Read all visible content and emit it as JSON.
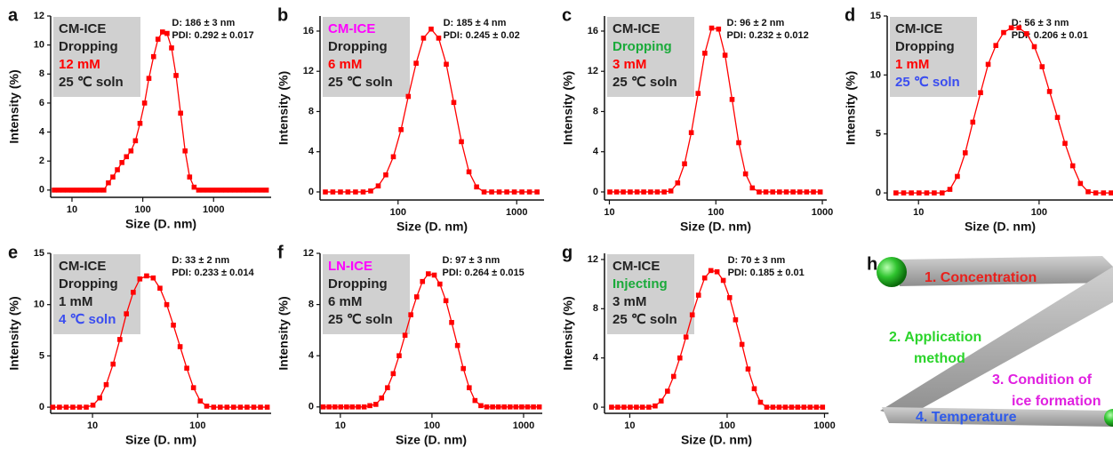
{
  "chart_data": [
    {
      "type": "line",
      "panel": "a",
      "x_scale": "log",
      "marker": "square",
      "annotation": [
        {
          "text": "CM-ICE",
          "color": "#222222"
        },
        {
          "text": "Dropping",
          "color": "#222222"
        },
        {
          "text": "12 mM",
          "color": "#ff0000"
        },
        {
          "text": "25 ℃ soln",
          "color": "#222222"
        }
      ],
      "stats": [
        "D: 186 ± 3 nm",
        "PDI: 0.292 ± 0.017"
      ],
      "x_label": "Size (D. nm)",
      "y_label": "Intensity (%)",
      "x": [
        5.62,
        6.5,
        7.53,
        8.72,
        10.1,
        11.7,
        13.5,
        15.7,
        18.2,
        21,
        24.4,
        28.2,
        32.7,
        37.8,
        43.8,
        50.8,
        58.8,
        68.1,
        78.8,
        91.3,
        106,
        122,
        142,
        164,
        190,
        220,
        255,
        295,
        342,
        396,
        459,
        531,
        615,
        712,
        825,
        955,
        1106,
        1281,
        1484,
        1718,
        1990,
        2305,
        2669,
        3091,
        3580,
        4145,
        4801,
        5560
      ],
      "series": [
        {
          "color": "#ff0000",
          "values": [
            0,
            0,
            0,
            0,
            0,
            0,
            0,
            0,
            0,
            0,
            0,
            0,
            0.5,
            0.9,
            1.4,
            1.9,
            2.3,
            2.7,
            3.4,
            4.6,
            6.0,
            7.7,
            9.2,
            10.4,
            10.9,
            10.8,
            9.8,
            7.9,
            5.3,
            2.7,
            0.9,
            0.2,
            0,
            0,
            0,
            0,
            0,
            0,
            0,
            0,
            0,
            0,
            0,
            0,
            0,
            0,
            0,
            0
          ]
        }
      ],
      "xlim": [
        5,
        6500
      ],
      "ylim": [
        -0.5,
        12
      ],
      "xticks": [
        10,
        100,
        1000
      ],
      "yticks": [
        0,
        2,
        4,
        6,
        8,
        10,
        12
      ]
    },
    {
      "type": "line",
      "panel": "b",
      "x_scale": "log",
      "marker": "square",
      "annotation": [
        {
          "text": "CM-ICE",
          "color": "#ff00ff"
        },
        {
          "text": "Dropping",
          "color": "#222222"
        },
        {
          "text": "6 mM",
          "color": "#ff0000"
        },
        {
          "text": "25 ℃ soln",
          "color": "#222222"
        }
      ],
      "stats": [
        "D: 185 ± 4 nm",
        "PDI: 0.245 ± 0.02"
      ],
      "x_label": "Size (D. nm)",
      "y_label": "Intensity (%)",
      "x": [
        24.4,
        28.2,
        32.7,
        37.8,
        43.8,
        50.8,
        58.8,
        68.1,
        78.8,
        91.3,
        106,
        122,
        142,
        164,
        190,
        220,
        255,
        295,
        342,
        396,
        459,
        531,
        615,
        712,
        825,
        955,
        1106,
        1281,
        1484
      ],
      "series": [
        {
          "color": "#ff0000",
          "values": [
            0,
            0,
            0,
            0,
            0,
            0,
            0.1,
            0.6,
            1.7,
            3.5,
            6.2,
            9.5,
            12.8,
            15.3,
            16.2,
            15.3,
            12.7,
            8.9,
            5.0,
            2.0,
            0.5,
            0,
            0,
            0,
            0,
            0,
            0,
            0,
            0
          ]
        }
      ],
      "xlim": [
        22,
        1700
      ],
      "ylim": [
        -0.8,
        17.5
      ],
      "xticks": [
        100,
        1000
      ],
      "yticks": [
        0,
        4,
        8,
        12,
        16
      ]
    },
    {
      "type": "line",
      "panel": "c",
      "x_scale": "log",
      "marker": "square",
      "annotation": [
        {
          "text": "CM-ICE",
          "color": "#222222"
        },
        {
          "text": "Dropping",
          "color": "#1aaa3a"
        },
        {
          "text": "3 mM",
          "color": "#ff0000"
        },
        {
          "text": "25 ℃ soln",
          "color": "#222222"
        }
      ],
      "stats": [
        "D: 96 ± 2 nm",
        "PDI: 0.232 ± 0.012"
      ],
      "x_label": "Size (D. nm)",
      "y_label": "Intensity (%)",
      "x": [
        10.1,
        11.7,
        13.5,
        15.7,
        18.2,
        21,
        24.4,
        28.2,
        32.7,
        37.8,
        43.8,
        50.8,
        58.8,
        68.1,
        78.8,
        91.3,
        106,
        122,
        142,
        164,
        190,
        220,
        255,
        295,
        342,
        396,
        459,
        531,
        615,
        712,
        825,
        955
      ],
      "series": [
        {
          "color": "#ff0000",
          "values": [
            0,
            0,
            0,
            0,
            0,
            0,
            0,
            0,
            0,
            0.1,
            0.9,
            2.8,
            5.9,
            9.8,
            13.8,
            16.3,
            16.2,
            13.6,
            9.2,
            4.9,
            1.8,
            0.4,
            0,
            0,
            0,
            0,
            0,
            0,
            0,
            0,
            0,
            0
          ]
        }
      ],
      "xlim": [
        9,
        1100
      ],
      "ylim": [
        -0.8,
        17.5
      ],
      "xticks": [
        10,
        100,
        1000
      ],
      "yticks": [
        0,
        4,
        8,
        12,
        16
      ]
    },
    {
      "type": "line",
      "panel": "d",
      "x_scale": "log",
      "marker": "square",
      "annotation": [
        {
          "text": "CM-ICE",
          "color": "#222222"
        },
        {
          "text": "Dropping",
          "color": "#222222"
        },
        {
          "text": "1 mM",
          "color": "#ff0000"
        },
        {
          "text": "25 ℃ soln",
          "color": "#3a4df0"
        }
      ],
      "stats": [
        "D: 56 ± 3 nm",
        "PDI: 0.206 ± 0.01"
      ],
      "x_label": "Size (D. nm)",
      "y_label": "Intensity (%)",
      "x": [
        6.5,
        7.53,
        8.72,
        10.1,
        11.7,
        13.5,
        15.7,
        18.2,
        21,
        24.4,
        28.2,
        32.7,
        37.8,
        43.8,
        50.8,
        58.8,
        68.1,
        78.8,
        91.3,
        106,
        122,
        142,
        164,
        190,
        220,
        255,
        295,
        342,
        396
      ],
      "series": [
        {
          "color": "#ff0000",
          "values": [
            0,
            0,
            0,
            0,
            0,
            0,
            0,
            0.3,
            1.4,
            3.4,
            6.0,
            8.5,
            10.9,
            12.5,
            13.6,
            14.0,
            14.0,
            13.5,
            12.4,
            10.7,
            8.6,
            6.4,
            4.2,
            2.3,
            0.8,
            0.1,
            0,
            0,
            0
          ]
        }
      ],
      "xlim": [
        5.5,
        410
      ],
      "ylim": [
        -0.6,
        15
      ],
      "xticks": [
        10,
        100
      ],
      "yticks": [
        0,
        5,
        10,
        15
      ]
    },
    {
      "type": "line",
      "panel": "e",
      "x_scale": "log",
      "marker": "square",
      "annotation": [
        {
          "text": "CM-ICE",
          "color": "#222222"
        },
        {
          "text": "Dropping",
          "color": "#222222"
        },
        {
          "text": "1 mM",
          "color": "#222222"
        },
        {
          "text": "4 ℃ soln",
          "color": "#3a4df0"
        }
      ],
      "stats": [
        "D: 33 ± 2 nm",
        "PDI: 0.233 ± 0.014"
      ],
      "x_label": "Size (D. nm)",
      "y_label": "Intensity (%)",
      "x": [
        4.19,
        4.85,
        5.62,
        6.5,
        7.53,
        8.72,
        10.1,
        11.7,
        13.5,
        15.7,
        18.2,
        21,
        24.4,
        28.2,
        32.7,
        37.8,
        43.8,
        50.8,
        58.8,
        68.1,
        78.8,
        91.3,
        106,
        122,
        142,
        164,
        190,
        220,
        255,
        295,
        342,
        396,
        459
      ],
      "series": [
        {
          "color": "#ff0000",
          "values": [
            0,
            0,
            0,
            0,
            0,
            0,
            0.2,
            0.9,
            2.2,
            4.2,
            6.6,
            9.1,
            11.2,
            12.5,
            12.8,
            12.6,
            11.6,
            10.0,
            8.0,
            5.9,
            3.8,
            1.9,
            0.6,
            0.1,
            0,
            0,
            0,
            0,
            0,
            0,
            0,
            0,
            0
          ]
        }
      ],
      "xlim": [
        4,
        500
      ],
      "ylim": [
        -0.6,
        15
      ],
      "xticks": [
        10,
        100
      ],
      "yticks": [
        0,
        5,
        10,
        15
      ]
    },
    {
      "type": "line",
      "panel": "f",
      "x_scale": "log",
      "marker": "square",
      "annotation": [
        {
          "text": "LN-ICE",
          "color": "#ff00ff"
        },
        {
          "text": "Dropping",
          "color": "#222222"
        },
        {
          "text": "6 mM",
          "color": "#222222"
        },
        {
          "text": "25 ℃ soln",
          "color": "#222222"
        }
      ],
      "stats": [
        "D: 97 ± 3 nm",
        "PDI: 0.264 ± 0.015"
      ],
      "x_label": "Size (D. nm)",
      "y_label": "Intensity (%)",
      "x": [
        6.5,
        7.53,
        8.72,
        10.1,
        11.7,
        13.5,
        15.7,
        18.2,
        21,
        24.4,
        28.2,
        32.7,
        37.8,
        43.8,
        50.8,
        58.8,
        68.1,
        78.8,
        91.3,
        106,
        122,
        142,
        164,
        190,
        220,
        255,
        295,
        342,
        396,
        459,
        531,
        615,
        712,
        825,
        955,
        1106,
        1281,
        1484
      ],
      "series": [
        {
          "color": "#ff0000",
          "values": [
            0,
            0,
            0,
            0,
            0,
            0,
            0,
            0,
            0.1,
            0.2,
            0.7,
            1.5,
            2.6,
            4.0,
            5.6,
            7.2,
            8.6,
            9.8,
            10.4,
            10.3,
            9.6,
            8.3,
            6.6,
            4.8,
            3.0,
            1.5,
            0.5,
            0.1,
            0,
            0,
            0,
            0,
            0,
            0,
            0,
            0,
            0,
            0
          ]
        }
      ],
      "xlim": [
        6,
        1600
      ],
      "ylim": [
        -0.5,
        12
      ],
      "xticks": [
        10,
        100,
        1000
      ],
      "yticks": [
        0,
        4,
        8,
        12
      ]
    },
    {
      "type": "line",
      "panel": "g",
      "x_scale": "log",
      "marker": "square",
      "annotation": [
        {
          "text": "CM-ICE",
          "color": "#222222"
        },
        {
          "text": "Injecting",
          "color": "#1aaa3a"
        },
        {
          "text": "3 mM",
          "color": "#222222"
        },
        {
          "text": "25 ℃ soln",
          "color": "#222222"
        }
      ],
      "stats": [
        "D: 70 ± 3 nm",
        "PDI: 0.185 ± 0.01"
      ],
      "x_label": "Size (D. nm)",
      "y_label": "Intensity (%)",
      "x": [
        6.5,
        7.53,
        8.72,
        10.1,
        11.7,
        13.5,
        15.7,
        18.2,
        21,
        24.4,
        28.2,
        32.7,
        37.8,
        43.8,
        50.8,
        58.8,
        68.1,
        78.8,
        91.3,
        106,
        122,
        142,
        164,
        190,
        220,
        255,
        295,
        342,
        396,
        459,
        531,
        615,
        712,
        825,
        955
      ],
      "series": [
        {
          "color": "#ff0000",
          "values": [
            0,
            0,
            0,
            0,
            0,
            0,
            0,
            0.1,
            0.5,
            1.3,
            2.5,
            4.0,
            5.7,
            7.5,
            9.1,
            10.5,
            11.1,
            11.0,
            10.3,
            8.9,
            7.1,
            5.1,
            3.1,
            1.5,
            0.4,
            0,
            0,
            0,
            0,
            0,
            0,
            0,
            0,
            0,
            0
          ]
        }
      ],
      "xlim": [
        5.5,
        1100
      ],
      "ylim": [
        -0.5,
        12.5
      ],
      "xticks": [
        10,
        100,
        1000
      ],
      "yticks": [
        0,
        4,
        8,
        12
      ]
    }
  ],
  "diagram": {
    "panel": "h",
    "labels": [
      {
        "lines": [
          "1. Concentration"
        ],
        "color": "#e8201c"
      },
      {
        "lines": [
          "2. Application",
          "method"
        ],
        "color": "#2bd42b"
      },
      {
        "lines": [
          "3. Condition of",
          "ice formation"
        ],
        "color": "#e020e0"
      },
      {
        "lines": [
          "4. Temperature"
        ],
        "color": "#2f5bea"
      }
    ]
  }
}
